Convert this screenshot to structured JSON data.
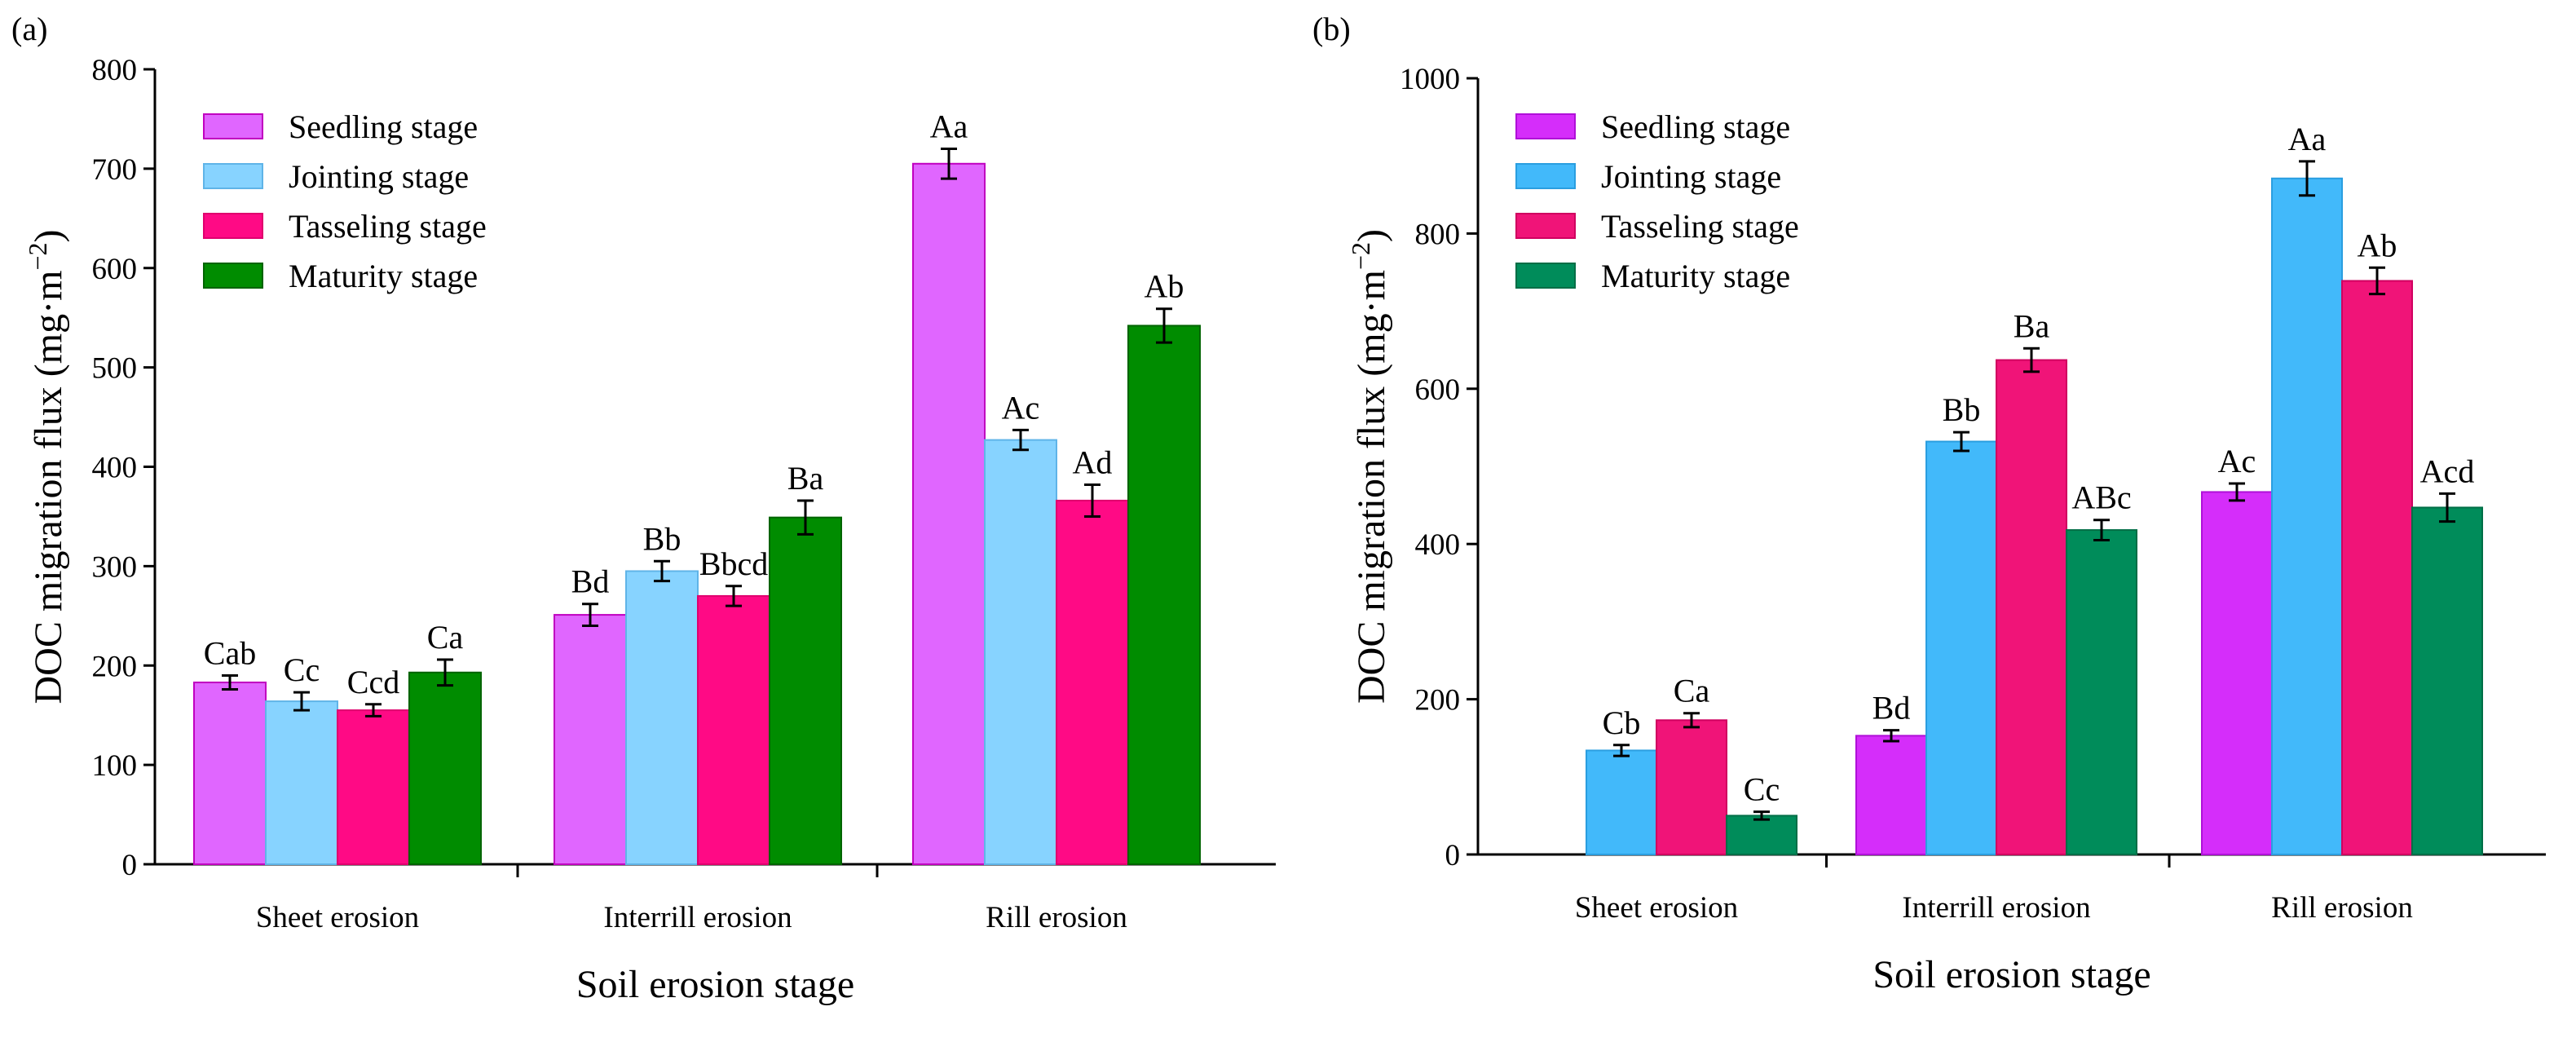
{
  "panels": [
    {
      "label": "(a)"
    },
    {
      "label": "(b)"
    }
  ],
  "chart_data": [
    {
      "type": "bar",
      "panel": "(a)",
      "title": "",
      "xlabel": "Soil erosion stage",
      "ylabel_main": "DOC migration flux (mg·m",
      "ylabel_sup": "−2",
      "ylabel_end": ")",
      "categories": [
        "Sheet erosion",
        "Interrill erosion",
        "Rill erosion"
      ],
      "ylim": [
        0,
        800
      ],
      "yticks": [
        0,
        100,
        200,
        300,
        400,
        500,
        600,
        700,
        800
      ],
      "legend_position": "top-left",
      "series": [
        {
          "name": "Seedling stage",
          "color": "#E066FF",
          "edge": "#C000C0",
          "values": [
            183,
            251,
            705
          ],
          "errors": [
            7,
            11,
            15
          ],
          "labels": [
            "Cab",
            "Bd",
            "Aa"
          ]
        },
        {
          "name": "Jointing stage",
          "color": "#87D3FF",
          "edge": "#5FB4E8",
          "values": [
            164,
            295,
            427
          ],
          "errors": [
            9,
            10,
            10
          ],
          "labels": [
            "Cc",
            "Bb",
            "Ac"
          ]
        },
        {
          "name": "Tasseling stage",
          "color": "#FF0A85",
          "edge": "#E0006E",
          "values": [
            155,
            270,
            366
          ],
          "errors": [
            6,
            10,
            16
          ],
          "labels": [
            "Ccd",
            "Bbcd",
            "Ad"
          ]
        },
        {
          "name": "Maturity stage",
          "color": "#008C00",
          "edge": "#006400",
          "values": [
            193,
            349,
            542
          ],
          "errors": [
            13,
            17,
            17
          ],
          "labels": [
            "Ca",
            "Ba",
            "Ab"
          ]
        }
      ]
    },
    {
      "type": "bar",
      "panel": "(b)",
      "title": "",
      "xlabel": "Soil erosion stage",
      "ylabel_main": "DOC migration flux (mg·m",
      "ylabel_sup": "−2",
      "ylabel_end": ")",
      "categories": [
        "Sheet erosion",
        "Interrill erosion",
        "Rill erosion"
      ],
      "ylim": [
        0,
        1000
      ],
      "yticks": [
        0,
        200,
        400,
        600,
        800,
        1000
      ],
      "legend_position": "top-left",
      "series": [
        {
          "name": "Seedling stage",
          "color": "#D52DFA",
          "edge": "#B010D8",
          "values": [
            null,
            153,
            467
          ],
          "errors": [
            0,
            7,
            11
          ],
          "labels": [
            "",
            "Bd",
            "Ac"
          ]
        },
        {
          "name": "Jointing stage",
          "color": "#42B9FA",
          "edge": "#2A9EE0",
          "values": [
            134,
            532,
            871
          ],
          "errors": [
            7,
            12,
            22
          ],
          "labels": [
            "Cb",
            "Bb",
            "Aa"
          ]
        },
        {
          "name": "Tasseling stage",
          "color": "#F01478",
          "edge": "#D00060",
          "values": [
            173,
            637,
            739
          ],
          "errors": [
            9,
            15,
            17
          ],
          "labels": [
            "Ca",
            "Ba",
            "Ab"
          ]
        },
        {
          "name": "Maturity stage",
          "color": "#008C5A",
          "edge": "#006E46",
          "values": [
            50,
            418,
            447
          ],
          "errors": [
            5,
            13,
            18
          ],
          "labels": [
            "Cc",
            "ABc",
            "Acd"
          ]
        }
      ]
    }
  ]
}
